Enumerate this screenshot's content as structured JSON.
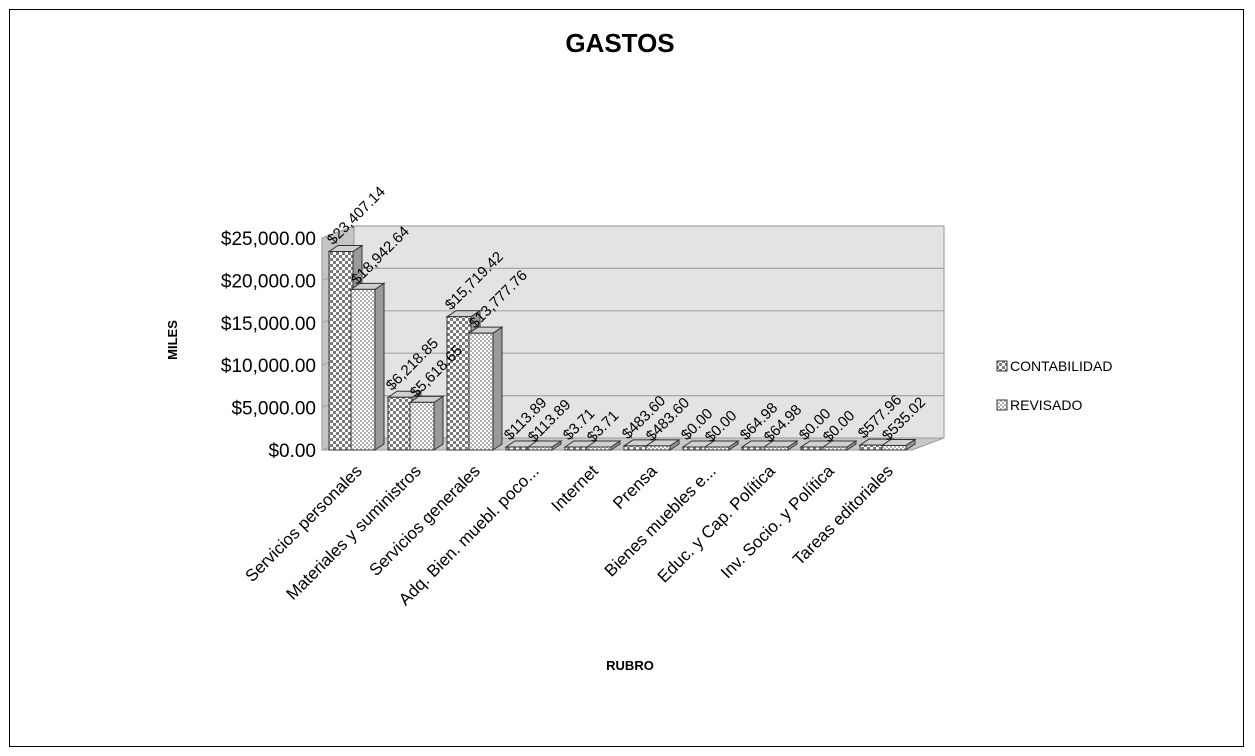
{
  "chart_data": {
    "type": "bar",
    "title": "GASTOS",
    "xlabel": "RUBRO",
    "ylabel": "MILES",
    "ylim": [
      0,
      25000
    ],
    "yticks": [
      "$0.00",
      "$5,000.00",
      "$10,000.00",
      "$15,000.00",
      "$20,000.00",
      "$25,000.00"
    ],
    "categories": [
      "Servicios personales",
      "Materiales y suministros",
      "Servicios generales",
      "Adq. Bien. muebl. poco...",
      "Internet",
      "Prensa",
      "Bienes muebles e...",
      "Educ. y Cap. Política",
      "Inv. Socio. y Política",
      "Tareas editoriales"
    ],
    "series": [
      {
        "name": "CONTABILIDAD",
        "values": [
          23407.14,
          6218.85,
          15719.42,
          113.89,
          3.71,
          483.6,
          0.0,
          64.98,
          0.0,
          577.96
        ],
        "labels": [
          "$23,407.14",
          "$6,218.85",
          "$15,719.42",
          "$113.89",
          "$3.71",
          "$483.60",
          "$0.00",
          "$64.98",
          "$0.00",
          "$577.96"
        ]
      },
      {
        "name": "REVISADO",
        "values": [
          18942.64,
          5618.65,
          13777.76,
          113.89,
          3.71,
          483.6,
          0.0,
          64.98,
          0.0,
          535.02
        ],
        "labels": [
          "$18,942.64",
          "$5,618.65",
          "$13,777.76",
          "$113.89",
          "$3.71",
          "$483.60",
          "$0.00",
          "$64.98",
          "$0.00",
          "$535.02"
        ]
      }
    ],
    "grid": true,
    "legend_position": "right",
    "colors": {
      "wall": "#e3e3e3",
      "side_wall": "#c4c4c4",
      "floor": "#c8c8c8",
      "grid": "#a6a6a6",
      "bar_front": "#ffffff",
      "bar_pattern": "#8a8a8a"
    }
  }
}
